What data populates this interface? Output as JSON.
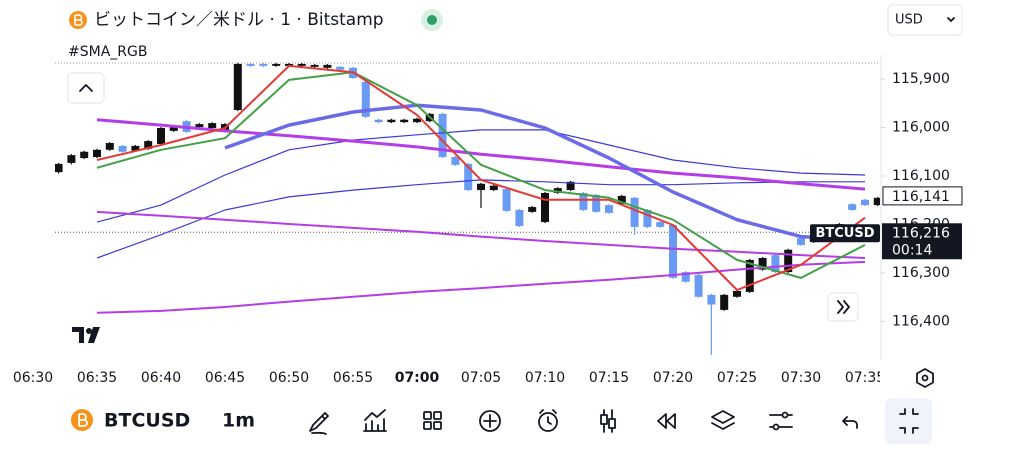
{
  "header": {
    "title": "ビットコイン／米ドル · 1 · Bitstamp",
    "currency": "USD",
    "indicator": "#SMA_RGB"
  },
  "toolbar": {
    "symbol": "BTCUSD",
    "interval": "1m"
  },
  "chart_data": {
    "type": "candlestick",
    "categories": [
      "06:30",
      null,
      null,
      null,
      null,
      "06:35",
      null,
      null,
      null,
      null,
      "06:40",
      null,
      null,
      null,
      null,
      "06:45",
      null,
      null,
      null,
      null,
      "06:50",
      null,
      null,
      null,
      null,
      "06:55",
      null,
      null,
      null,
      null,
      "07:00",
      null,
      null,
      null,
      null,
      "07:05",
      null,
      null,
      null,
      null,
      "07:10",
      null,
      null,
      null,
      null,
      "07:15",
      null,
      null,
      null,
      null,
      "07:20",
      null,
      null,
      null,
      null,
      "07:25",
      null,
      null,
      null,
      null,
      "07:30",
      null,
      null,
      null,
      null,
      "07:35",
      null
    ],
    "candles": [
      null,
      null,
      [
        116092,
        116095,
        116073,
        116075
      ],
      [
        116073,
        116076,
        116055,
        116057
      ],
      [
        116063,
        116065,
        116048,
        116050
      ],
      [
        116061,
        116063,
        116044,
        116046
      ],
      [
        116046,
        116048,
        116030,
        116032
      ],
      [
        116038,
        116052,
        116036,
        116050
      ],
      [
        116048,
        116050,
        116036,
        116038
      ],
      [
        116044,
        116046,
        116026,
        116028
      ],
      [
        116034,
        116036,
        115999,
        116001
      ],
      [
        116007,
        116009,
        115995,
        115997
      ],
      [
        115987,
        116011,
        115985,
        116009
      ],
      [
        115999,
        116001,
        115991,
        115993
      ],
      [
        116001,
        116003,
        115989,
        115991
      ],
      [
        116007,
        116009,
        115991,
        115993
      ],
      [
        115964,
        115966,
        115867,
        115869
      ],
      [
        115869,
        115875,
        115867,
        115873
      ],
      [
        115869,
        115875,
        115867,
        115873
      ],
      [
        115873,
        115875,
        115867,
        115869
      ],
      [
        115873,
        115875,
        115867,
        115869
      ],
      [
        115873,
        115875,
        115867,
        115869
      ],
      [
        115875,
        115877,
        115869,
        115871
      ],
      [
        115877,
        115879,
        115869,
        115871
      ],
      [
        115875,
        115883,
        115873,
        115881
      ],
      [
        115877,
        115900,
        115875,
        115898
      ],
      [
        115906,
        115980,
        115904,
        115978
      ],
      [
        115984,
        115991,
        115982,
        115989
      ],
      [
        115989,
        115991,
        115982,
        115984
      ],
      [
        115989,
        115991,
        115982,
        115984
      ],
      [
        115989,
        115991,
        115980,
        115982
      ],
      [
        115987,
        115989,
        115970,
        115972
      ],
      [
        115972,
        116063,
        115970,
        116061
      ],
      [
        116061,
        116079,
        116059,
        116077
      ],
      [
        116075,
        116131,
        116073,
        116129
      ],
      [
        116129,
        116166,
        116114,
        116116
      ],
      [
        116129,
        116131,
        116118,
        116120
      ],
      [
        116127,
        116174,
        116125,
        116172
      ],
      [
        116170,
        116205,
        116168,
        116203
      ],
      [
        116174,
        116176,
        116162,
        116164
      ],
      [
        116195,
        116197,
        116133,
        116135
      ],
      [
        116135,
        116137,
        116123,
        116125
      ],
      [
        116129,
        116131,
        116110,
        116112
      ],
      [
        116135,
        116172,
        116133,
        116170
      ],
      [
        116139,
        116176,
        116137,
        116174
      ],
      [
        116160,
        116178,
        116158,
        116176
      ],
      [
        116158,
        116160,
        116139,
        116141
      ],
      [
        116145,
        116221,
        116143,
        116205
      ],
      [
        116170,
        116207,
        116168,
        116205
      ],
      [
        116195,
        116207,
        116193,
        116205
      ],
      [
        116201,
        116312,
        116199,
        116310
      ],
      [
        116298,
        116320,
        116296,
        116318
      ],
      [
        116304,
        116351,
        116302,
        116349
      ],
      [
        116345,
        116469,
        116343,
        116365
      ],
      [
        116376,
        116378,
        116343,
        116345
      ],
      [
        116349,
        116351,
        116335,
        116337
      ],
      [
        116339,
        116341,
        116271,
        116273
      ],
      [
        116293,
        116295,
        116267,
        116269
      ],
      [
        116263,
        116300,
        116261,
        116298
      ],
      [
        116298,
        116300,
        116250,
        116252
      ],
      [
        116228,
        116244,
        116226,
        116242
      ],
      [
        116236,
        116238,
        116226,
        116228
      ],
      [
        116221,
        116234,
        116219,
        116232
      ],
      [
        116211,
        116213,
        116197,
        116199
      ],
      [
        116158,
        116172,
        116156,
        116170
      ],
      [
        116149,
        116162,
        116147,
        116160
      ],
      [
        116160,
        116162,
        116143,
        116145
      ]
    ],
    "up_color": "#6a9bf4",
    "down_color": "#111111",
    "series": [
      {
        "color": "#3a3ad6",
        "x": [
          "06:35",
          "06:40",
          "06:45",
          "06:50",
          "06:55",
          "07:00",
          "07:05",
          "07:10",
          "07:15",
          "07:20",
          "07:25",
          "07:30",
          "07:35"
        ],
        "values": [
          116195,
          116160,
          116098,
          116046,
          116026,
          116015,
          116005,
          116005,
          116036,
          116067,
          116083,
          116094,
          116098
        ]
      },
      {
        "color": "#3a3ad6",
        "x": [
          "06:35",
          "06:40",
          "06:45",
          "06:50",
          "06:55",
          "07:00",
          "07:05",
          "07:10",
          "07:15",
          "07:20",
          "07:25",
          "07:30",
          "07:35"
        ],
        "values": [
          116269,
          116221,
          116170,
          116143,
          116129,
          116118,
          116108,
          116112,
          116118,
          116118,
          116114,
          116112,
          116112
        ]
      },
      {
        "color": "#b43de6",
        "x": [
          "06:35",
          "06:40",
          "06:45",
          "06:50",
          "06:55",
          "07:00",
          "07:05",
          "07:10",
          "07:15",
          "07:20",
          "07:25",
          "07:30",
          "07:35"
        ],
        "values": [
          116174,
          116182,
          116190,
          116199,
          116207,
          116215,
          116225,
          116234,
          116242,
          116250,
          116256,
          116263,
          116269
        ]
      },
      {
        "color": "#b43de6",
        "x": [
          "06:35",
          "06:40",
          "06:45",
          "06:50",
          "06:55",
          "07:00",
          "07:05",
          "07:10",
          "07:15",
          "07:20",
          "07:25",
          "07:30",
          "07:35"
        ],
        "values": [
          116382,
          116378,
          116370,
          116359,
          116349,
          116339,
          116331,
          116322,
          116314,
          116304,
          116293,
          116283,
          116277
        ]
      },
      {
        "color": "#b43de6",
        "x": [
          "06:35",
          "06:40",
          "06:45",
          "06:50",
          "06:55",
          "07:00",
          "07:05",
          "07:10",
          "07:15",
          "07:20",
          "07:25",
          "07:30",
          "07:35"
        ],
        "values": [
          115984,
          115995,
          116007,
          116017,
          116028,
          116040,
          116055,
          116067,
          116081,
          116094,
          116104,
          116116,
          116127
        ]
      },
      {
        "color": "#6b6be8",
        "x": [
          "06:45",
          "06:50",
          "06:55",
          "07:00",
          "07:05",
          "07:10",
          "07:15",
          "07:20",
          "07:25",
          "07:30",
          "07:35"
        ],
        "values": [
          116042,
          115995,
          115968,
          115954,
          115964,
          116001,
          116063,
          116133,
          116190,
          116225,
          116232
        ]
      },
      {
        "color": "#43a047",
        "x": [
          "06:35",
          "06:40",
          "06:45",
          "06:50",
          "06:55",
          "07:00",
          "07:05",
          "07:10",
          "07:15",
          "07:20",
          "07:25",
          "07:30",
          "07:35"
        ],
        "values": [
          116083,
          116046,
          116022,
          115902,
          115886,
          115954,
          116077,
          116129,
          116145,
          116190,
          116273,
          116310,
          116242
        ]
      },
      {
        "color": "#e53935",
        "x": [
          "06:35",
          "06:40",
          "06:45",
          "06:50",
          "06:55",
          "07:00",
          "07:05",
          "07:10",
          "07:15",
          "07:20",
          "07:25",
          "07:30",
          "07:35"
        ],
        "values": [
          116067,
          116036,
          116001,
          115873,
          115886,
          115974,
          116108,
          116149,
          116149,
          116201,
          116335,
          116283,
          116186
        ]
      }
    ],
    "ylim": [
      115865,
      116469
    ],
    "y_inverted": true,
    "yticks": [
      {
        "value": 115900,
        "label": "115,900"
      },
      {
        "value": 116000,
        "label": "116,000"
      },
      {
        "value": 116100,
        "label": "116,100"
      },
      {
        "value": 116200,
        "label": "116,200"
      },
      {
        "value": 116300,
        "label": "116,300"
      },
      {
        "value": 116400,
        "label": "116,400"
      }
    ],
    "price_labels": [
      {
        "value": 116141,
        "label": "116,141"
      },
      {
        "value": 116216,
        "label": "116,216",
        "symbol": "BTCUSD",
        "countdown": "00:14"
      }
    ]
  }
}
